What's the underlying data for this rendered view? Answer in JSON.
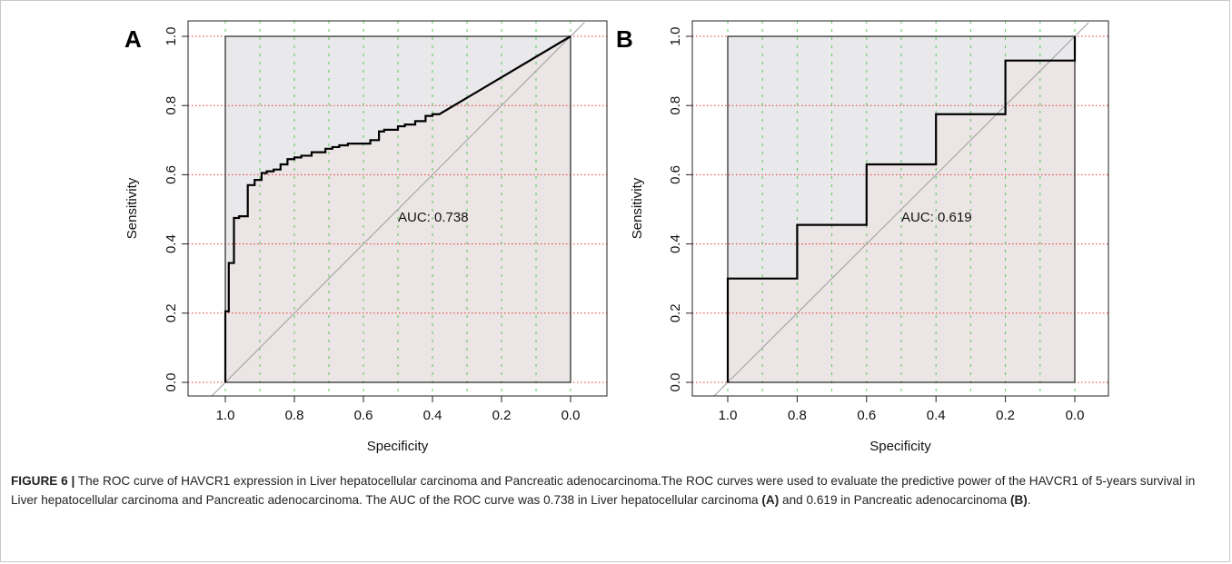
{
  "chart_data": [
    {
      "type": "line",
      "panel_label": "A",
      "xlabel": "Specificity",
      "ylabel": "Sensitivity",
      "xlim": [
        1.0,
        0.0
      ],
      "ylim": [
        0.0,
        1.0
      ],
      "x_reversed": true,
      "xticks": [
        "1.0",
        "0.8",
        "0.6",
        "0.4",
        "0.2",
        "0.0"
      ],
      "yticks": [
        "0.0",
        "0.2",
        "0.4",
        "0.6",
        "0.8",
        "1.0"
      ],
      "annotation": "AUC: 0.738",
      "grid": true,
      "roc": {
        "specificity": [
          1.0,
          1.0,
          0.99,
          0.99,
          0.975,
          0.975,
          0.96,
          0.96,
          0.935,
          0.935,
          0.915,
          0.915,
          0.895,
          0.895,
          0.88,
          0.88,
          0.86,
          0.86,
          0.84,
          0.84,
          0.82,
          0.82,
          0.8,
          0.8,
          0.78,
          0.78,
          0.75,
          0.75,
          0.71,
          0.71,
          0.69,
          0.69,
          0.67,
          0.67,
          0.645,
          0.645,
          0.625,
          0.625,
          0.58,
          0.58,
          0.555,
          0.555,
          0.54,
          0.54,
          0.5,
          0.5,
          0.48,
          0.48,
          0.45,
          0.45,
          0.42,
          0.42,
          0.4,
          0.4,
          0.38,
          0.0
        ],
        "sensitivity": [
          0.0,
          0.205,
          0.205,
          0.345,
          0.345,
          0.475,
          0.475,
          0.48,
          0.48,
          0.57,
          0.57,
          0.585,
          0.585,
          0.605,
          0.605,
          0.61,
          0.61,
          0.615,
          0.615,
          0.63,
          0.63,
          0.645,
          0.645,
          0.65,
          0.65,
          0.655,
          0.655,
          0.665,
          0.665,
          0.675,
          0.675,
          0.68,
          0.68,
          0.685,
          0.685,
          0.69,
          0.69,
          0.69,
          0.69,
          0.7,
          0.7,
          0.725,
          0.725,
          0.73,
          0.73,
          0.74,
          0.74,
          0.745,
          0.745,
          0.755,
          0.755,
          0.77,
          0.77,
          0.775,
          0.775,
          1.0
        ]
      }
    },
    {
      "type": "line",
      "panel_label": "B",
      "xlabel": "Specificity",
      "ylabel": "Sensitivity",
      "xlim": [
        1.0,
        0.0
      ],
      "ylim": [
        0.0,
        1.0
      ],
      "x_reversed": true,
      "xticks": [
        "1.0",
        "0.8",
        "0.6",
        "0.4",
        "0.2",
        "0.0"
      ],
      "yticks": [
        "0.0",
        "0.2",
        "0.4",
        "0.6",
        "0.8",
        "1.0"
      ],
      "annotation": "AUC: 0.619",
      "grid": true,
      "roc": {
        "specificity": [
          1.0,
          1.0,
          0.8,
          0.8,
          0.6,
          0.6,
          0.4,
          0.4,
          0.2,
          0.2,
          0.0,
          0.0
        ],
        "sensitivity": [
          0.0,
          0.3,
          0.3,
          0.455,
          0.455,
          0.63,
          0.63,
          0.775,
          0.775,
          0.93,
          0.93,
          1.0
        ]
      }
    }
  ],
  "caption": {
    "label": "FIGURE 6 |",
    "seg1": " The ROC curve of HAVCR1 expression in Liver hepatocellular carcinoma and Pancreatic adenocarcinoma.The ROC curves were used to evaluate the predictive power of the HAVCR1 of 5-years survival in Liver hepatocellular carcinoma and Pancreatic adenocarcinoma. The AUC of the ROC curve was 0.738 in Liver hepatocellular carcinoma ",
    "refA": "(A)",
    "seg2": " and 0.619 in Pancreatic adenocarcinoma ",
    "refB": "(B)",
    "seg3": "."
  },
  "colors": {
    "upper_fill": "#e9e9ec",
    "lower_fill": "#ece5e5",
    "curve": "#000000",
    "diagonal": "#a8a8a8",
    "h_grid": "#e8332f",
    "v_grid": "#55c855",
    "axis": "#222222"
  }
}
